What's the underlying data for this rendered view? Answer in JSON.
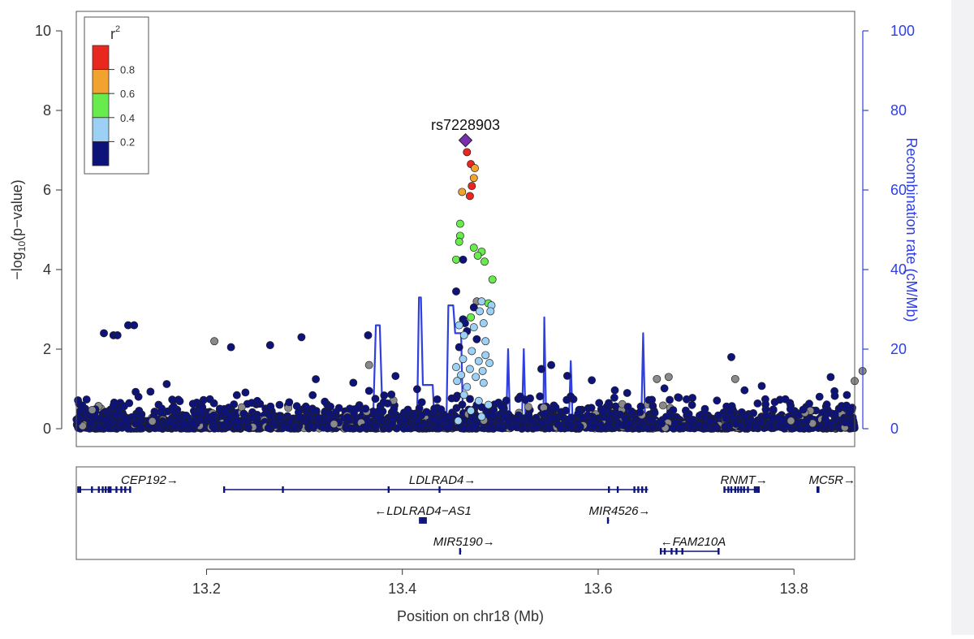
{
  "chart_data": {
    "type": "scatter",
    "xlabel": "Position on chr18 (Mb)",
    "ylabel": "−log",
    "ylabel_sub": "10",
    "ylabel_tail": "(p−value)",
    "y2label": "Recombination rate (cM/Mb)",
    "xlim": [
      13.067,
      13.862
    ],
    "ylim": [
      0,
      10
    ],
    "y2lim": [
      0,
      100
    ],
    "x_ticks": [
      "13.2",
      "13.4",
      "13.6",
      "13.8"
    ],
    "y_ticks": [
      "0",
      "2",
      "4",
      "6",
      "8",
      "10"
    ],
    "y2_ticks": [
      "0",
      "20",
      "40",
      "60",
      "80",
      "100"
    ],
    "lead_snp": {
      "label": "rs7228903",
      "x": 13.4645,
      "y": 7.25
    },
    "legend": {
      "title": "r",
      "title_sup": "2",
      "placement": "top-left",
      "bins": [
        {
          "label": "0.8",
          "color": "#e8271e"
        },
        {
          "label": "0.6",
          "color": "#f2a32f"
        },
        {
          "label": "0.4",
          "color": "#68eb4c"
        },
        {
          "label": "0.2",
          "color": "#9dd0f5"
        },
        {
          "label": "",
          "color": "#0d1378"
        }
      ]
    },
    "colors": {
      "r2_high": "#e8271e",
      "r2_mid_high": "#f2a32f",
      "r2_mid": "#68eb4c",
      "r2_low": "#9dd0f5",
      "r2_none": "#0d1378",
      "r2_missing": "#8a8a8a",
      "lead": "#7a2fb0",
      "recomb": "#2f3fe0",
      "axis_right": "#2f3fe0",
      "gene": "#0d1378"
    },
    "highlighted_points": [
      {
        "x": 13.466,
        "y": 6.95,
        "ld": "r2_high"
      },
      {
        "x": 13.47,
        "y": 6.65,
        "ld": "r2_high"
      },
      {
        "x": 13.474,
        "y": 6.55,
        "ld": "r2_mid_high"
      },
      {
        "x": 13.473,
        "y": 6.3,
        "ld": "r2_mid_high"
      },
      {
        "x": 13.471,
        "y": 6.1,
        "ld": "r2_high"
      },
      {
        "x": 13.461,
        "y": 5.95,
        "ld": "r2_mid_high"
      },
      {
        "x": 13.469,
        "y": 5.85,
        "ld": "r2_high"
      },
      {
        "x": 13.459,
        "y": 5.15,
        "ld": "r2_mid"
      },
      {
        "x": 13.459,
        "y": 4.85,
        "ld": "r2_mid"
      },
      {
        "x": 13.458,
        "y": 4.7,
        "ld": "r2_mid"
      },
      {
        "x": 13.473,
        "y": 4.55,
        "ld": "r2_mid"
      },
      {
        "x": 13.481,
        "y": 4.45,
        "ld": "r2_mid"
      },
      {
        "x": 13.477,
        "y": 4.35,
        "ld": "r2_mid"
      },
      {
        "x": 13.455,
        "y": 4.25,
        "ld": "r2_mid"
      },
      {
        "x": 13.462,
        "y": 4.25,
        "ld": "r2_none"
      },
      {
        "x": 13.484,
        "y": 4.2,
        "ld": "r2_mid"
      },
      {
        "x": 13.492,
        "y": 3.75,
        "ld": "r2_mid"
      },
      {
        "x": 13.455,
        "y": 3.45,
        "ld": "r2_none"
      },
      {
        "x": 13.476,
        "y": 3.2,
        "ld": "r2_missing"
      },
      {
        "x": 13.481,
        "y": 3.2,
        "ld": "r2_low"
      },
      {
        "x": 13.488,
        "y": 3.15,
        "ld": "r2_mid"
      },
      {
        "x": 13.491,
        "y": 3.1,
        "ld": "r2_low"
      },
      {
        "x": 13.473,
        "y": 3.05,
        "ld": "r2_none"
      },
      {
        "x": 13.479,
        "y": 2.95,
        "ld": "r2_low"
      },
      {
        "x": 13.49,
        "y": 2.95,
        "ld": "r2_low"
      },
      {
        "x": 13.47,
        "y": 2.8,
        "ld": "r2_mid"
      },
      {
        "x": 13.462,
        "y": 2.75,
        "ld": "r2_none"
      },
      {
        "x": 13.464,
        "y": 2.65,
        "ld": "r2_none"
      },
      {
        "x": 13.483,
        "y": 2.65,
        "ld": "r2_low"
      },
      {
        "x": 13.458,
        "y": 2.6,
        "ld": "r2_low"
      },
      {
        "x": 13.473,
        "y": 2.55,
        "ld": "r2_low"
      },
      {
        "x": 13.466,
        "y": 2.45,
        "ld": "r2_none"
      },
      {
        "x": 13.463,
        "y": 2.35,
        "ld": "r2_low"
      },
      {
        "x": 13.476,
        "y": 2.25,
        "ld": "r2_none"
      },
      {
        "x": 13.485,
        "y": 2.2,
        "ld": "r2_low"
      },
      {
        "x": 13.458,
        "y": 2.05,
        "ld": "r2_none"
      },
      {
        "x": 13.471,
        "y": 1.95,
        "ld": "r2_low"
      },
      {
        "x": 13.485,
        "y": 1.85,
        "ld": "r2_low"
      },
      {
        "x": 13.462,
        "y": 1.75,
        "ld": "r2_low"
      },
      {
        "x": 13.478,
        "y": 1.7,
        "ld": "r2_low"
      },
      {
        "x": 13.489,
        "y": 1.65,
        "ld": "r2_low"
      },
      {
        "x": 13.455,
        "y": 1.55,
        "ld": "r2_low"
      },
      {
        "x": 13.469,
        "y": 1.5,
        "ld": "r2_low"
      },
      {
        "x": 13.482,
        "y": 1.45,
        "ld": "r2_low"
      },
      {
        "x": 13.46,
        "y": 1.35,
        "ld": "r2_low"
      },
      {
        "x": 13.475,
        "y": 1.3,
        "ld": "r2_low"
      },
      {
        "x": 13.456,
        "y": 1.2,
        "ld": "r2_low"
      },
      {
        "x": 13.483,
        "y": 1.15,
        "ld": "r2_low"
      },
      {
        "x": 13.466,
        "y": 1.05,
        "ld": "r2_low"
      },
      {
        "x": 13.463,
        "y": 0.85,
        "ld": "r2_low"
      },
      {
        "x": 13.478,
        "y": 0.7,
        "ld": "r2_low"
      },
      {
        "x": 13.488,
        "y": 0.6,
        "ld": "r2_low"
      },
      {
        "x": 13.47,
        "y": 0.45,
        "ld": "r2_low"
      },
      {
        "x": 13.481,
        "y": 0.3,
        "ld": "r2_low"
      },
      {
        "x": 13.457,
        "y": 0.2,
        "ld": "r2_low"
      },
      {
        "x": 13.0952,
        "y": 2.4,
        "ld": "r2_none"
      },
      {
        "x": 13.105,
        "y": 2.35,
        "ld": "r2_none"
      },
      {
        "x": 13.109,
        "y": 2.35,
        "ld": "r2_none"
      },
      {
        "x": 13.12,
        "y": 2.6,
        "ld": "r2_none"
      },
      {
        "x": 13.126,
        "y": 2.6,
        "ld": "r2_none"
      },
      {
        "x": 13.225,
        "y": 2.05,
        "ld": "r2_none"
      },
      {
        "x": 13.265,
        "y": 2.1,
        "ld": "r2_none"
      },
      {
        "x": 13.297,
        "y": 2.3,
        "ld": "r2_none"
      },
      {
        "x": 13.365,
        "y": 2.35,
        "ld": "r2_none"
      },
      {
        "x": 13.366,
        "y": 1.6,
        "ld": "r2_missing"
      },
      {
        "x": 13.208,
        "y": 2.2,
        "ld": "r2_missing"
      },
      {
        "x": 13.552,
        "y": 1.6,
        "ld": "r2_none"
      },
      {
        "x": 13.542,
        "y": 1.5,
        "ld": "r2_none"
      },
      {
        "x": 13.736,
        "y": 1.8,
        "ld": "r2_none"
      },
      {
        "x": 13.672,
        "y": 1.3,
        "ld": "r2_missing"
      },
      {
        "x": 13.66,
        "y": 1.25,
        "ld": "r2_missing"
      },
      {
        "x": 13.74,
        "y": 1.25,
        "ld": "r2_missing"
      },
      {
        "x": 13.87,
        "y": 1.45,
        "ld": "r2_missing"
      },
      {
        "x": 13.862,
        "y": 1.2,
        "ld": "r2_missing"
      }
    ],
    "background_points_note": "",
    "recombination": [
      [
        13.067,
        0.5
      ],
      [
        13.155,
        0.5
      ],
      [
        13.2,
        1
      ],
      [
        13.227,
        6
      ],
      [
        13.232,
        1
      ],
      [
        13.3,
        1
      ],
      [
        13.37,
        1
      ],
      [
        13.373,
        26
      ],
      [
        13.377,
        26
      ],
      [
        13.38,
        1
      ],
      [
        13.415,
        1
      ],
      [
        13.417,
        33
      ],
      [
        13.419,
        33
      ],
      [
        13.421,
        11
      ],
      [
        13.431,
        11
      ],
      [
        13.433,
        1
      ],
      [
        13.445,
        1
      ],
      [
        13.447,
        31
      ],
      [
        13.452,
        31
      ],
      [
        13.454,
        24
      ],
      [
        13.46,
        24
      ],
      [
        13.462,
        1
      ],
      [
        13.506,
        1
      ],
      [
        13.508,
        20
      ],
      [
        13.51,
        1
      ],
      [
        13.522,
        1
      ],
      [
        13.524,
        20
      ],
      [
        13.526,
        1
      ],
      [
        13.544,
        1
      ],
      [
        13.545,
        28
      ],
      [
        13.547,
        1
      ],
      [
        13.57,
        1
      ],
      [
        13.572,
        17
      ],
      [
        13.574,
        1
      ],
      [
        13.644,
        1
      ],
      [
        13.646,
        24
      ],
      [
        13.648,
        1
      ],
      [
        13.7,
        1
      ],
      [
        13.8,
        0.5
      ],
      [
        13.862,
        0.5
      ]
    ],
    "genes": [
      {
        "name": "CEP192",
        "dir": "right",
        "label_x": 13.142,
        "row": 0,
        "start": 13.068,
        "end": 13.123,
        "exons": [
          13.069,
          13.071,
          13.083,
          13.09,
          13.094,
          13.097,
          13.1,
          13.102,
          13.108,
          13.113,
          13.117,
          13.122
        ]
      },
      {
        "name": "LDLRAD4",
        "dir": "right",
        "label_x": 13.441,
        "row": 0,
        "start": 13.217,
        "end": 13.651,
        "exons": [
          13.218,
          13.278,
          13.386,
          13.438,
          13.611,
          13.62,
          13.637,
          13.641,
          13.645,
          13.649
        ]
      },
      {
        "name": "RNMT",
        "dir": "right",
        "label_x": 13.749,
        "row": 0,
        "start": 13.728,
        "end": 13.765,
        "exons": [
          13.729,
          13.733,
          13.736,
          13.74,
          13.743,
          13.746,
          13.749,
          13.753,
          13.76,
          13.762,
          13.764
        ]
      },
      {
        "name": "MC5R",
        "dir": "right",
        "label_x": 13.839,
        "row": 0,
        "start": 13.824,
        "end": 13.826,
        "exons": [
          13.824,
          13.825
        ]
      },
      {
        "name": "LDLRAD4−AS1",
        "dir": "left",
        "label_x": 13.421,
        "row": 1,
        "start": 13.417,
        "end": 13.425,
        "exons": [
          13.418,
          13.42,
          13.422,
          13.424
        ]
      },
      {
        "name": "MIR4526",
        "dir": "right",
        "label_x": 13.622,
        "row": 1,
        "start": 13.61,
        "end": 13.611,
        "exons": [
          13.61
        ]
      },
      {
        "name": "MIR5190",
        "dir": "right",
        "label_x": 13.463,
        "row": 2,
        "start": 13.459,
        "end": 13.46,
        "exons": [
          13.459
        ]
      },
      {
        "name": "FAM210A",
        "dir": "left",
        "label_x": 13.697,
        "row": 2,
        "start": 13.663,
        "end": 13.724,
        "exons": [
          13.664,
          13.668,
          13.675,
          13.68,
          13.686,
          13.723
        ]
      }
    ]
  }
}
